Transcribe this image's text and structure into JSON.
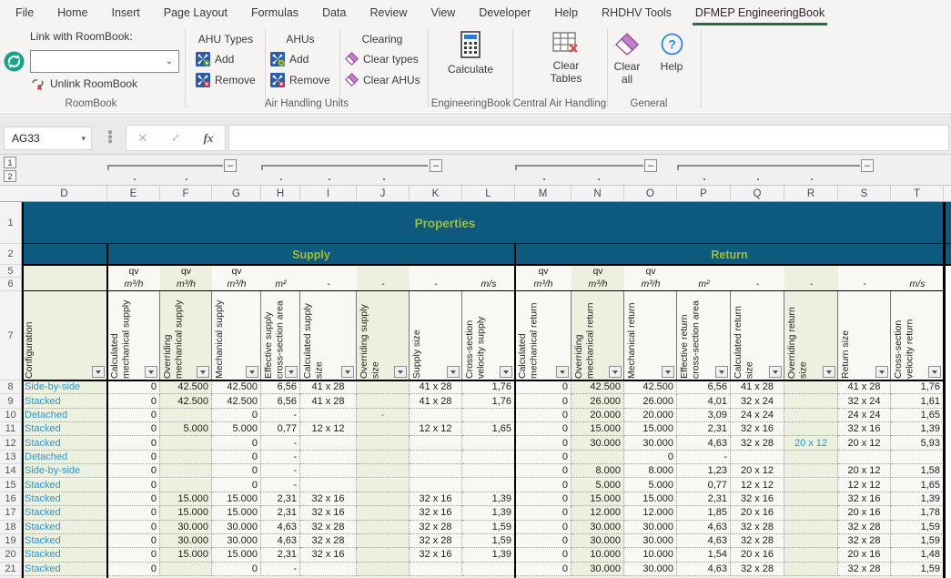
{
  "ribbon": {
    "tabs": [
      {
        "label": "File",
        "active": false
      },
      {
        "label": "Home",
        "active": false
      },
      {
        "label": "Insert",
        "active": false
      },
      {
        "label": "Page Layout",
        "active": false
      },
      {
        "label": "Formulas",
        "active": false
      },
      {
        "label": "Data",
        "active": false
      },
      {
        "label": "Review",
        "active": false
      },
      {
        "label": "View",
        "active": false
      },
      {
        "label": "Developer",
        "active": false
      },
      {
        "label": "Help",
        "active": false
      },
      {
        "label": "RHDHV Tools",
        "active": false
      },
      {
        "label": "DFMEP EngineeringBook",
        "active": true
      }
    ],
    "roombook": {
      "link_label": "Link with RoomBook:",
      "combo_value": "",
      "unlink_label": "Unlink RoomBook",
      "group_label": "RoomBook"
    },
    "ahu": {
      "sections": [
        {
          "title": "AHU Types",
          "items": [
            "Add",
            "Remove"
          ]
        },
        {
          "title": "AHUs",
          "items": [
            "Add",
            "Remove"
          ]
        },
        {
          "title": "Clearing",
          "items": [
            "Clear types",
            "Clear AHUs"
          ]
        }
      ],
      "group_label": "Air Handling Units"
    },
    "engineeringbook": {
      "button_label": "Calculate",
      "group_label": "EngineeringBook"
    },
    "central": {
      "button_label": "Clear Tables",
      "group_label": "Central Air Handling"
    },
    "general": {
      "clear_all_label": "Clear all",
      "help_label": "Help",
      "group_label": "General"
    }
  },
  "formula_bar": {
    "name_box": "AG33",
    "formula": ""
  },
  "outline": {
    "levels": [
      "1",
      "2"
    ]
  },
  "grid": {
    "column_letters": [
      "D",
      "E",
      "F",
      "G",
      "H",
      "I",
      "J",
      "K",
      "L",
      "M",
      "N",
      "O",
      "P",
      "Q",
      "R",
      "S",
      "T"
    ],
    "top_row_numbers": [
      [
        "1",
        46
      ],
      [
        "2",
        23
      ],
      [
        "5",
        14
      ],
      [
        "6",
        15
      ],
      [
        "7",
        98
      ]
    ],
    "data_row_numbers": [
      "8",
      "9",
      "10",
      "11",
      "12",
      "13",
      "14",
      "15",
      "16",
      "17",
      "18",
      "19",
      "20",
      "21"
    ],
    "clipped_row_number": "22"
  },
  "table": {
    "title": "Properties",
    "sections": [
      "Supply",
      "Return"
    ],
    "units_top": [
      "",
      "qv",
      "qv",
      "qv",
      "",
      "",
      "",
      "",
      "",
      "qv",
      "qv",
      "qv",
      "",
      "",
      "",
      "",
      ""
    ],
    "units_bottom": [
      "",
      "m³/h",
      "m³/h",
      "m³/h",
      "m²",
      "-",
      "-",
      "-",
      "m/s",
      "m³/h",
      "m³/h",
      "m³/h",
      "m²",
      "-",
      "-",
      "-",
      "m/s"
    ],
    "headers": [
      "Configuration",
      "Calculated\nmechanical supply",
      "Overriding\nmechanical supply",
      "Mechanical supply",
      "Effective supply\ncross-section area",
      "Calculated supply\nsize",
      "Overriding supply\nsize",
      "Supply size",
      "Cross-section\nvelocity supply",
      "Calculated\nmechanical return",
      "Overriding\nmechanical return",
      "Mechanical return",
      "Effective return\ncross-section area",
      "Calculated return\nsize",
      "Overriding return\nsize",
      "Return size",
      "Cross-section\nvelocity return"
    ],
    "rows": [
      {
        "n": "8",
        "config": "Side-by-side",
        "supply": [
          "0",
          "42.500",
          "42.500",
          "6,56",
          "41 x 28",
          "",
          "41 x 28",
          "1,76"
        ],
        "return": [
          "0",
          "42.500",
          "42.500",
          "6,56",
          "41 x 28",
          "",
          "41 x 28",
          "1,76"
        ],
        "blue": []
      },
      {
        "n": "9",
        "config": "Stacked",
        "supply": [
          "0",
          "42.500",
          "42.500",
          "6,56",
          "41 x 28",
          "",
          "41 x 28",
          "1,76"
        ],
        "return": [
          "0",
          "26.000",
          "26.000",
          "4,01",
          "32 x 24",
          "",
          "32 x 24",
          "1,61"
        ],
        "blue": []
      },
      {
        "n": "10",
        "config": "Detached",
        "supply": [
          "0",
          "",
          "0",
          "-",
          "",
          "-",
          "",
          ""
        ],
        "return": [
          "0",
          "20.000",
          "20.000",
          "3,09",
          "24 x 24",
          "",
          "24 x 24",
          "1,65"
        ],
        "blue": [
          "J"
        ]
      },
      {
        "n": "11",
        "config": "Stacked",
        "supply": [
          "0",
          "5.000",
          "5.000",
          "0,77",
          "12 x 12",
          "",
          "12 x 12",
          "1,65"
        ],
        "return": [
          "0",
          "15.000",
          "15.000",
          "2,31",
          "32 x 16",
          "",
          "32 x 16",
          "1,39"
        ],
        "blue": []
      },
      {
        "n": "12",
        "config": "Stacked",
        "supply": [
          "0",
          "",
          "0",
          "-",
          "",
          "",
          "",
          ""
        ],
        "return": [
          "0",
          "30.000",
          "30.000",
          "4,63",
          "32 x 28",
          "20 x 12",
          "20 x 12",
          "5,93"
        ],
        "blue": [
          "R"
        ]
      },
      {
        "n": "13",
        "config": "Detached",
        "supply": [
          "0",
          "",
          "0",
          "-",
          "",
          "",
          "",
          ""
        ],
        "return": [
          "0",
          "",
          "0",
          "-",
          "",
          "",
          "",
          ""
        ],
        "blue": []
      },
      {
        "n": "14",
        "config": "Side-by-side",
        "supply": [
          "0",
          "",
          "0",
          "-",
          "",
          "",
          "",
          ""
        ],
        "return": [
          "0",
          "8.000",
          "8.000",
          "1,23",
          "20 x 12",
          "",
          "20 x 12",
          "1,58"
        ],
        "blue": []
      },
      {
        "n": "15",
        "config": "Stacked",
        "supply": [
          "0",
          "",
          "0",
          "-",
          "",
          "",
          "",
          ""
        ],
        "return": [
          "0",
          "5.000",
          "5.000",
          "0,77",
          "12 x 12",
          "",
          "12 x 12",
          "1,65"
        ],
        "blue": []
      },
      {
        "n": "16",
        "config": "Stacked",
        "supply": [
          "0",
          "15.000",
          "15.000",
          "2,31",
          "32 x 16",
          "",
          "32 x 16",
          "1,39"
        ],
        "return": [
          "0",
          "15.000",
          "15.000",
          "2,31",
          "32 x 16",
          "",
          "32 x 16",
          "1,39"
        ],
        "blue": []
      },
      {
        "n": "17",
        "config": "Stacked",
        "supply": [
          "0",
          "15.000",
          "15.000",
          "2,31",
          "32 x 16",
          "",
          "32 x 16",
          "1,39"
        ],
        "return": [
          "0",
          "12.000",
          "12.000",
          "1,85",
          "20 x 16",
          "",
          "20 x 16",
          "1,78"
        ],
        "blue": []
      },
      {
        "n": "18",
        "config": "Stacked",
        "supply": [
          "0",
          "30.000",
          "30.000",
          "4,63",
          "32 x 28",
          "",
          "32 x 28",
          "1,59"
        ],
        "return": [
          "0",
          "30.000",
          "30.000",
          "4,63",
          "32 x 28",
          "",
          "32 x 28",
          "1,59"
        ],
        "blue": []
      },
      {
        "n": "19",
        "config": "Stacked",
        "supply": [
          "0",
          "30.000",
          "30.000",
          "4,63",
          "32 x 28",
          "",
          "32 x 28",
          "1,59"
        ],
        "return": [
          "0",
          "30.000",
          "30.000",
          "4,63",
          "32 x 28",
          "",
          "32 x 28",
          "1,59"
        ],
        "blue": []
      },
      {
        "n": "20",
        "config": "Stacked",
        "supply": [
          "0",
          "15.000",
          "15.000",
          "2,31",
          "32 x 16",
          "",
          "32 x 16",
          "1,39"
        ],
        "return": [
          "0",
          "10.000",
          "10.000",
          "1,54",
          "20 x 16",
          "",
          "20 x 16",
          "1,48"
        ],
        "blue": []
      },
      {
        "n": "21",
        "config": "Stacked",
        "supply": [
          "0",
          "",
          "0",
          "-",
          "",
          "",
          "",
          ""
        ],
        "return": [
          "0",
          "30.000",
          "30.000",
          "4,63",
          "32 x 28",
          "",
          "32 x 28",
          "1,59"
        ],
        "blue": []
      }
    ]
  },
  "colors": {
    "teal_header": "#0e5a7e",
    "lime_text": "#a2bf2a",
    "green_cell": "#ebf1de",
    "plain_cell": "#f8f8f4",
    "blue_value": "#2e96cd",
    "tab_underline": "#1e7145"
  }
}
